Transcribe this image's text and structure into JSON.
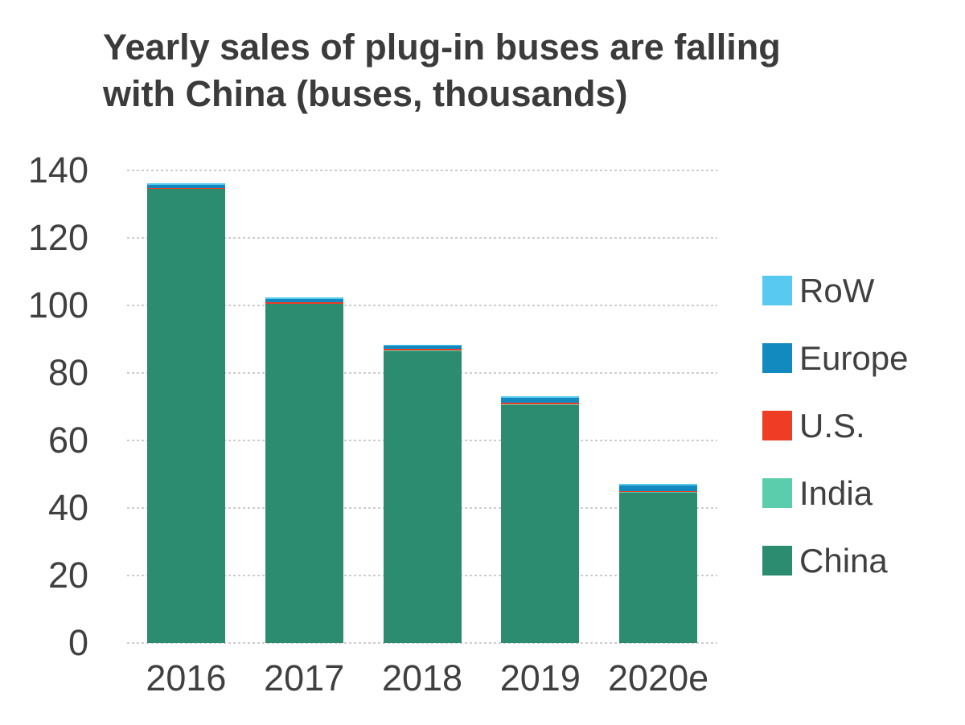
{
  "title": {
    "line1": "Yearly sales of plug-in buses are falling",
    "line2": "with China (buses, thousands)"
  },
  "colors": {
    "background": "#ffffff",
    "title_text": "#3b3b3b",
    "axis_text": "#404040",
    "gridline": "#cdcdcd"
  },
  "chart_data": {
    "type": "bar",
    "stacked": true,
    "title": "Yearly sales of plug-in buses are falling with China (buses, thousands)",
    "categories": [
      "2016",
      "2017",
      "2018",
      "2019",
      "2020e"
    ],
    "series": [
      {
        "name": "China",
        "color": "#2b8c6f",
        "values": [
          134.5,
          100.4,
          86.5,
          70.5,
          44.5
        ]
      },
      {
        "name": "India",
        "color": "#5bcdad",
        "values": [
          0.1,
          0.1,
          0.2,
          0.2,
          0.3
        ]
      },
      {
        "name": "U.S.",
        "color": "#ee3d24",
        "values": [
          0.2,
          0.5,
          0.5,
          0.5,
          0.1
        ]
      },
      {
        "name": "Europe",
        "color": "#1289bf",
        "values": [
          0.9,
          1.0,
          0.8,
          1.5,
          1.7
        ]
      },
      {
        "name": "RoW",
        "color": "#58c9f0",
        "values": [
          0.4,
          0.5,
          0.4,
          0.5,
          0.5
        ]
      }
    ],
    "totals": [
      136.1,
      102.5,
      88.4,
      73.2,
      47.1
    ],
    "xlabel": "",
    "ylabel": "",
    "y_axis": {
      "min": 0,
      "max": 140,
      "step": 20,
      "ticks": [
        140,
        120,
        100,
        80,
        60,
        40,
        20,
        0
      ]
    },
    "grid": true,
    "legend": {
      "position": "right",
      "entries": [
        {
          "label": "RoW",
          "color": "#58c9f0"
        },
        {
          "label": "Europe",
          "color": "#1289bf"
        },
        {
          "label": "U.S.",
          "color": "#ee3d24"
        },
        {
          "label": "India",
          "color": "#5bcdad"
        },
        {
          "label": "China",
          "color": "#2b8c6f"
        }
      ]
    }
  }
}
